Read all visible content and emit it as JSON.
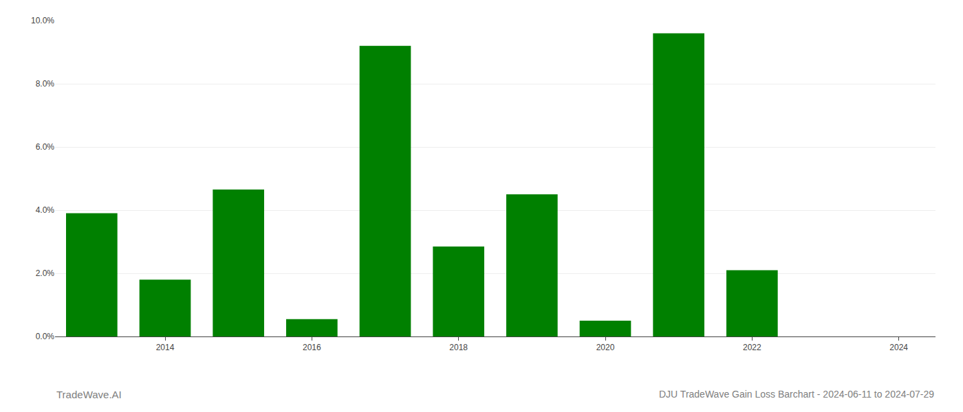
{
  "chart_data": {
    "type": "bar",
    "title": "DJU TradeWave Gain Loss Barchart - 2024-06-11 to 2024-07-29",
    "annotations": [
      "TradeWave.AI"
    ],
    "x": [
      2013,
      2014,
      2015,
      2016,
      2017,
      2018,
      2019,
      2020,
      2021,
      2022,
      2023
    ],
    "values": [
      0.039,
      0.018,
      0.0465,
      0.0055,
      0.092,
      0.0285,
      0.045,
      0.005,
      0.096,
      0.021,
      0.0
    ],
    "color": "#008000",
    "ylim": [
      0,
      0.1
    ],
    "yticks": [
      {
        "value": 0.0,
        "label": "0.0%"
      },
      {
        "value": 0.02,
        "label": "2.0%"
      },
      {
        "value": 0.04,
        "label": "4.0%"
      },
      {
        "value": 0.06,
        "label": "6.0%"
      },
      {
        "value": 0.08,
        "label": "8.0%"
      },
      {
        "value": 0.1,
        "label": "10.0%"
      }
    ],
    "xlim": [
      2012.5,
      2024.5
    ],
    "xticks": [
      2014,
      2016,
      2018,
      2020,
      2022,
      2024
    ],
    "grid": true
  }
}
